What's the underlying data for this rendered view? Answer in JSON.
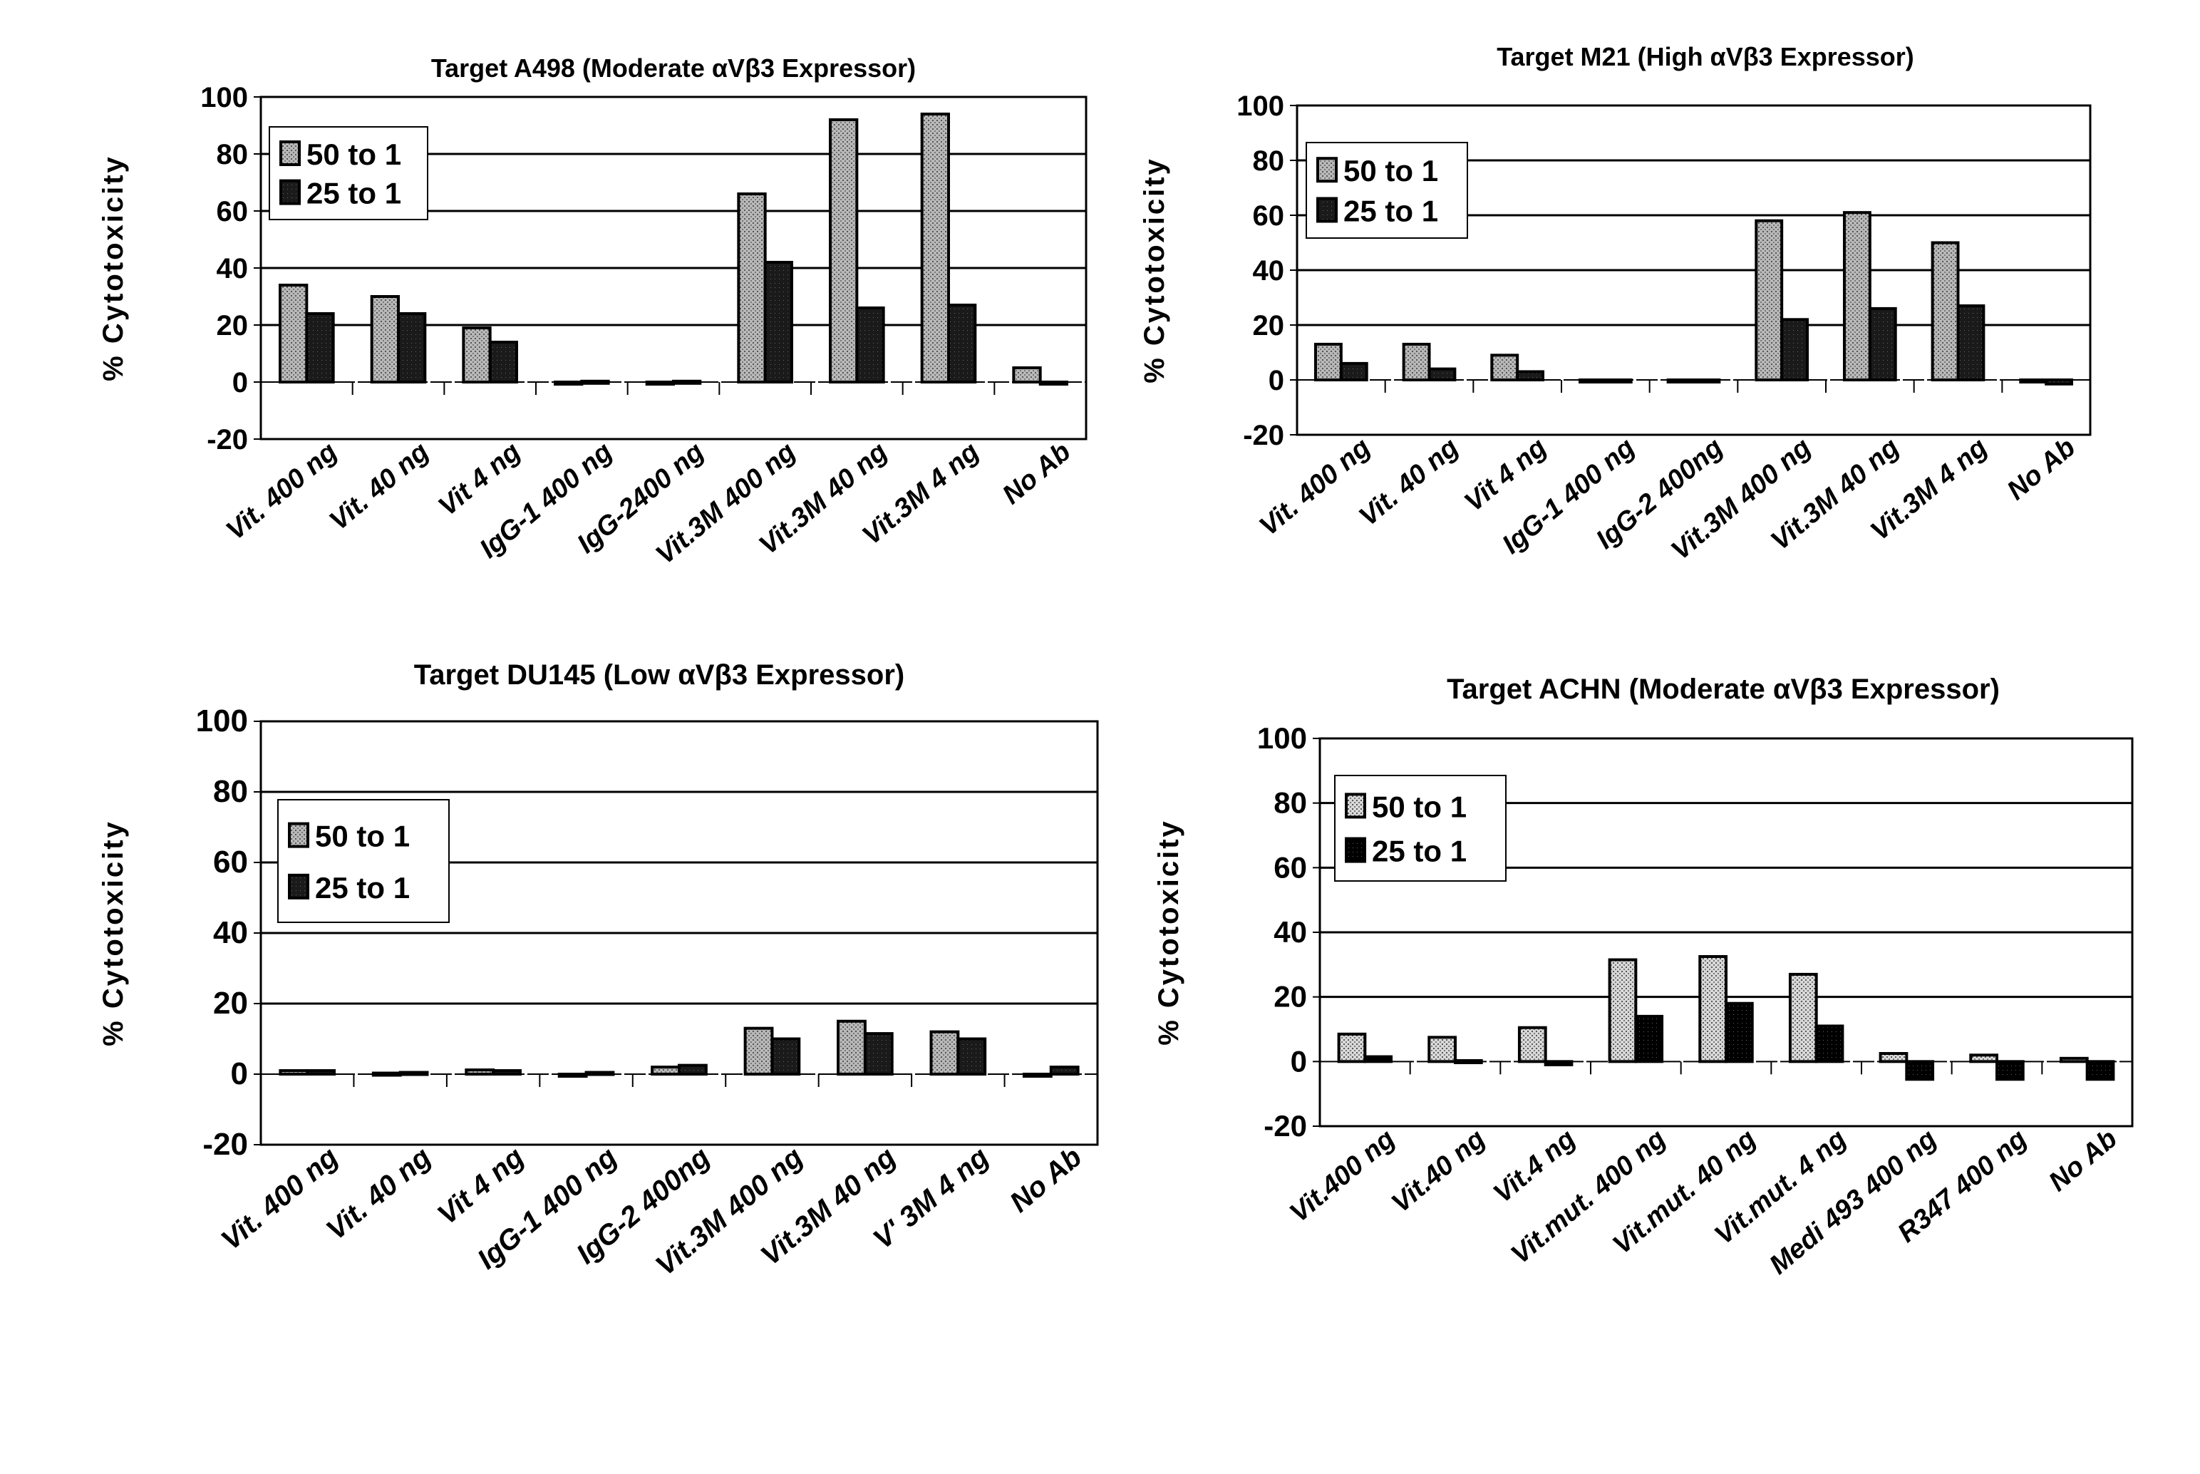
{
  "chart_data": [
    {
      "type": "bar",
      "title": "Target A498 (Moderate αVβ3 Expressor)",
      "xlabel": "",
      "ylabel": "% Cytotoxicity",
      "ylim": [
        -20,
        100
      ],
      "yticks": [
        100,
        80,
        60,
        40,
        20,
        0,
        -20
      ],
      "grid": true,
      "legend": "top-left",
      "categories": [
        "Vit. 400 ng",
        "Vit. 40 ng",
        "Vit 4 ng",
        "IgG-1  400 ng",
        "IgG-2400 ng",
        "Vit.3M 400 ng",
        "Vit.3M  40 ng",
        "Vit.3M 4 ng",
        "No Ab"
      ],
      "series": [
        {
          "name": "50 to 1",
          "values": [
            34,
            30,
            19,
            -0.5,
            0,
            66,
            92,
            94,
            5
          ]
        },
        {
          "name": "25 to 1",
          "values": [
            24,
            24,
            14,
            0.3,
            0.3,
            42,
            26,
            27,
            -0.3
          ]
        }
      ]
    },
    {
      "type": "bar",
      "title": "Target M21 (High αVβ3 Expressor)",
      "xlabel": "",
      "ylabel": "% Cytotoxicity",
      "ylim": [
        -20,
        100
      ],
      "yticks": [
        100,
        80,
        60,
        40,
        20,
        0,
        -20
      ],
      "grid": true,
      "legend": "top-left",
      "categories": [
        "Vit. 400 ng",
        "Vit. 40 ng",
        "Vit 4 ng",
        "IgG-1 400 ng",
        "IgG-2 400ng",
        "Vit.3M 400 ng",
        "Vit.3M 40 ng",
        "Vit.3M 4 ng",
        "No Ab"
      ],
      "series": [
        {
          "name": "50 to 1",
          "values": [
            13,
            13,
            9,
            -0.5,
            -0.5,
            58,
            61,
            50,
            -0.5
          ]
        },
        {
          "name": "25 to 1",
          "values": [
            6,
            4,
            3,
            -0.5,
            -0.5,
            22,
            26,
            27,
            -1.5
          ]
        }
      ]
    },
    {
      "type": "bar",
      "title": "Target DU145  (Low αVβ3 Expressor)",
      "xlabel": "",
      "ylabel": "% Cytotoxicity",
      "ylim": [
        -20,
        100
      ],
      "yticks": [
        100,
        80,
        60,
        40,
        20,
        0,
        -20
      ],
      "grid": true,
      "legend": "top-left",
      "categories": [
        "Vit. 400 ng",
        "Vit. 40 ng",
        "Vit 4 ng",
        "IgG-1 400 ng",
        "IgG-2 400ng",
        "Vit.3M 400 ng",
        "Vit.3M 40 ng",
        "V' 3M 4 ng",
        "No Ab"
      ],
      "series": [
        {
          "name": "50 to 1",
          "values": [
            1,
            0.3,
            1.2,
            -0.5,
            2,
            13,
            15,
            12,
            -0.5
          ]
        },
        {
          "name": "25 to 1",
          "values": [
            1,
            0.5,
            1,
            0.5,
            2.5,
            10,
            11.5,
            10,
            2
          ]
        }
      ]
    },
    {
      "type": "bar",
      "title": "Target ACHN (Moderate αVβ3 Expressor)",
      "xlabel": "",
      "ylabel": "% Cytotoxicity",
      "ylim": [
        -20,
        100
      ],
      "yticks": [
        100,
        80,
        60,
        40,
        20,
        0,
        -20
      ],
      "grid": true,
      "legend": "top-left",
      "categories": [
        "Vit.400 ng",
        "Vit.40 ng",
        "Vit.4 ng",
        "Vit.mut. 400 ng",
        "Vit.mut. 40 ng",
        "Vit.mut. 4 ng",
        "Medi 493 400 ng",
        "R347 400 ng",
        "No Ab"
      ],
      "series": [
        {
          "name": "50 to 1",
          "values": [
            8.5,
            7.5,
            10.5,
            31.5,
            32.5,
            27,
            2.5,
            2,
            1
          ]
        },
        {
          "name": "25 to 1",
          "values": [
            1.5,
            0.3,
            -1,
            14,
            18,
            11,
            -5.5,
            -5.5,
            -5.5
          ]
        }
      ]
    }
  ],
  "colors": {
    "series_50_to_1": "#b8b8b8",
    "series_25_to_1": "#1a1a1a",
    "achn_series_50_to_1": "#d8d8d8",
    "achn_series_25_to_1": "#000000",
    "gridline": "#000000",
    "background": "#ffffff"
  }
}
